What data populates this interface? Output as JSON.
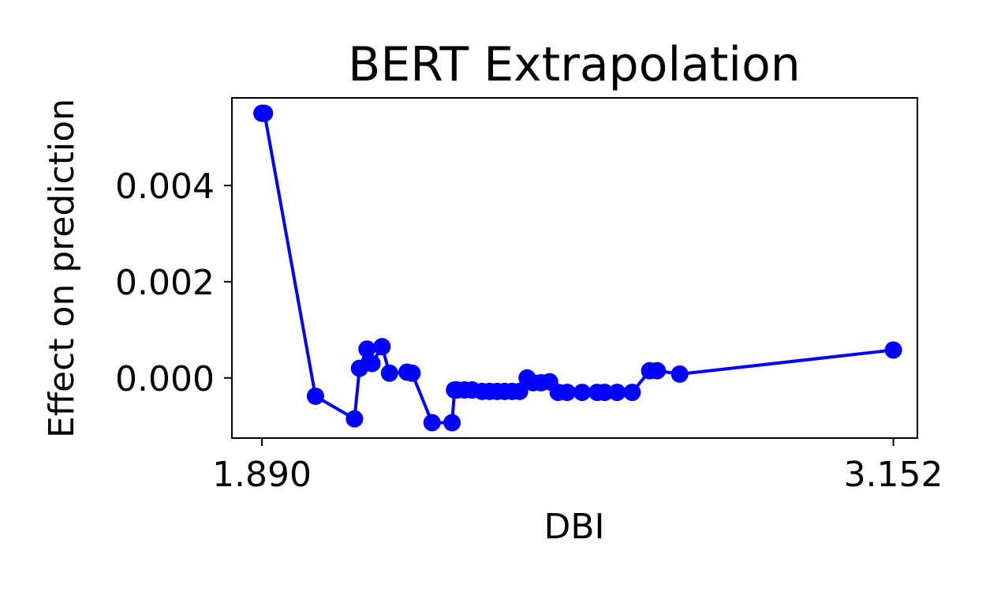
{
  "chart_data": {
    "type": "line",
    "title": "BERT Extrapolation",
    "xlabel": "DBI",
    "ylabel": "Effect on prediction",
    "xlim": [
      1.83,
      3.2
    ],
    "ylim": [
      -0.00125,
      0.00582
    ],
    "xticks": [
      1.89,
      3.152
    ],
    "xtick_labels": [
      "1.890",
      "3.152"
    ],
    "yticks": [
      0.0,
      0.002,
      0.004
    ],
    "ytick_labels": [
      "0.000",
      "0.002",
      "0.004"
    ],
    "grid": false,
    "legend": "none",
    "marker": "circle",
    "color": "#0000ff",
    "series": [
      {
        "x": [
          1.89,
          1.895,
          1.997,
          2.075,
          2.085,
          2.1,
          2.11,
          2.13,
          2.145,
          2.18,
          2.19,
          2.23,
          2.27,
          2.275,
          2.28,
          2.295,
          2.31,
          2.33,
          2.345,
          2.36,
          2.375,
          2.39,
          2.405,
          2.42,
          2.432,
          2.448,
          2.465,
          2.482,
          2.5,
          2.53,
          2.56,
          2.575,
          2.6,
          2.63,
          2.665,
          2.68,
          2.725,
          3.152
        ],
        "y": [
          0.0055,
          0.0055,
          -0.00038,
          -0.00085,
          0.0002,
          0.0006,
          0.0003,
          0.00065,
          0.0001,
          0.00012,
          0.0001,
          -0.00093,
          -0.00093,
          -0.00025,
          -0.00025,
          -0.00025,
          -0.00025,
          -0.00028,
          -0.00028,
          -0.00028,
          -0.00028,
          -0.00028,
          -0.00028,
          0.0,
          -0.0001,
          -0.0001,
          -8e-05,
          -0.0003,
          -0.0003,
          -0.0003,
          -0.0003,
          -0.0003,
          -0.0003,
          -0.0003,
          0.00015,
          0.00015,
          8e-05,
          0.00058
        ]
      }
    ]
  }
}
